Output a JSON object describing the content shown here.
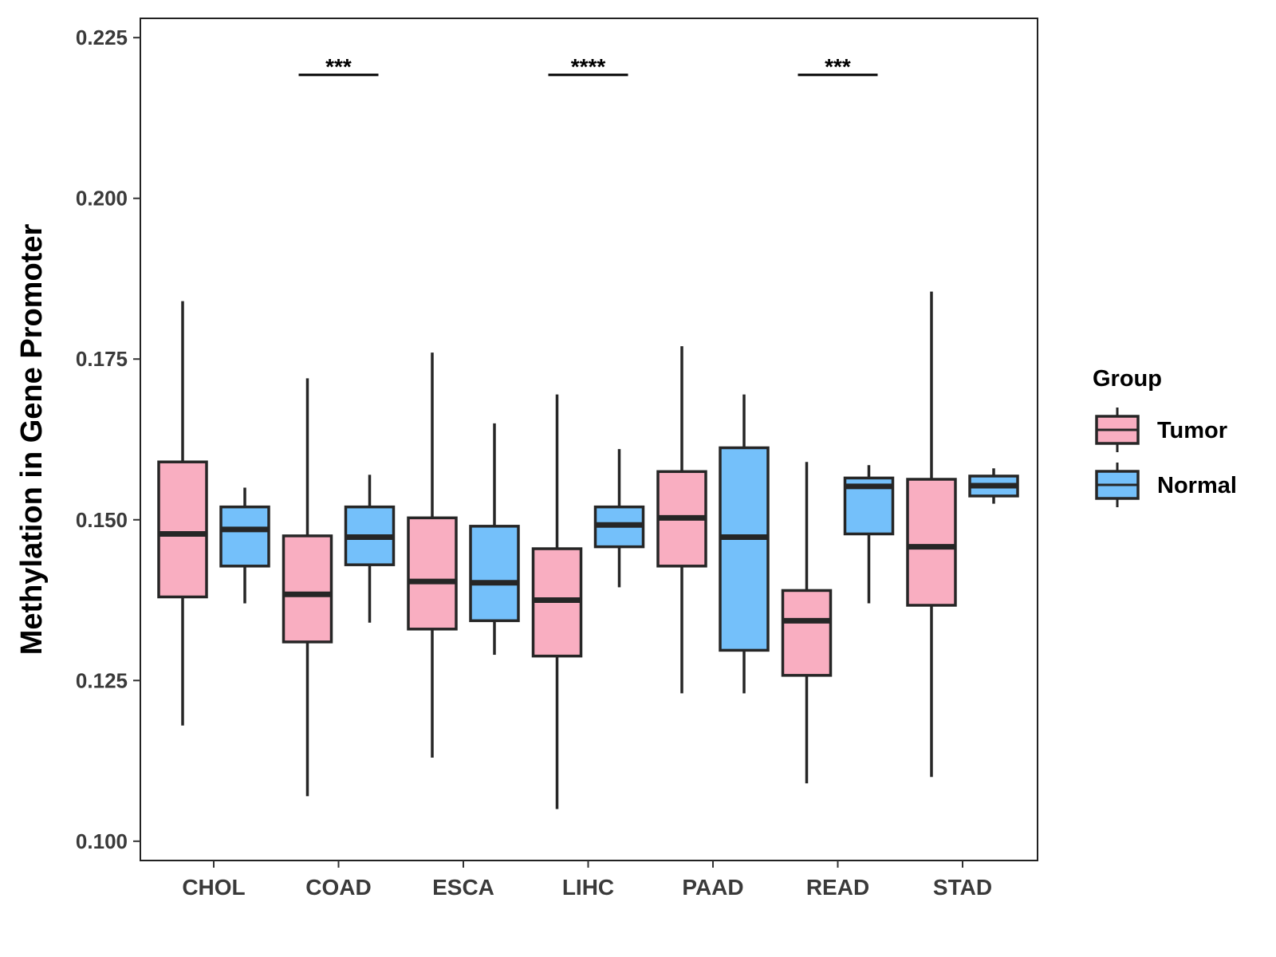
{
  "chart_data": {
    "type": "boxplot",
    "title": "",
    "xlabel": "",
    "ylabel": "Methylation in Gene Promoter",
    "ylim": [
      0.097,
      0.228
    ],
    "yticks": [
      0.1,
      0.125,
      0.15,
      0.175,
      0.2,
      0.225
    ],
    "ytick_labels": [
      "0.100",
      "0.125",
      "0.150",
      "0.175",
      "0.200",
      "0.225"
    ],
    "categories": [
      "CHOL",
      "COAD",
      "ESCA",
      "LIHC",
      "PAAD",
      "READ",
      "STAD"
    ],
    "grid": false,
    "legend": {
      "title": "Group",
      "position": "right",
      "entries": [
        {
          "name": "Tumor",
          "color": "#f9aec1"
        },
        {
          "name": "Normal",
          "color": "#74c0fa"
        }
      ]
    },
    "series": [
      {
        "name": "Tumor",
        "color": "#f9aec1",
        "boxes": [
          {
            "category": "CHOL",
            "whisker_low": 0.118,
            "q1": 0.138,
            "median": 0.1478,
            "q3": 0.159,
            "whisker_high": 0.184
          },
          {
            "category": "COAD",
            "whisker_low": 0.107,
            "q1": 0.131,
            "median": 0.1384,
            "q3": 0.1475,
            "whisker_high": 0.172
          },
          {
            "category": "ESCA",
            "whisker_low": 0.113,
            "q1": 0.133,
            "median": 0.1404,
            "q3": 0.1503,
            "whisker_high": 0.176
          },
          {
            "category": "LIHC",
            "whisker_low": 0.105,
            "q1": 0.1288,
            "median": 0.1375,
            "q3": 0.1455,
            "whisker_high": 0.1695
          },
          {
            "category": "PAAD",
            "whisker_low": 0.123,
            "q1": 0.1428,
            "median": 0.1503,
            "q3": 0.1575,
            "whisker_high": 0.177
          },
          {
            "category": "READ",
            "whisker_low": 0.109,
            "q1": 0.1258,
            "median": 0.1343,
            "q3": 0.139,
            "whisker_high": 0.159
          },
          {
            "category": "STAD",
            "whisker_low": 0.11,
            "q1": 0.1367,
            "median": 0.1458,
            "q3": 0.1563,
            "whisker_high": 0.1855
          }
        ]
      },
      {
        "name": "Normal",
        "color": "#74c0fa",
        "boxes": [
          {
            "category": "CHOL",
            "whisker_low": 0.137,
            "q1": 0.1428,
            "median": 0.1485,
            "q3": 0.152,
            "whisker_high": 0.155
          },
          {
            "category": "COAD",
            "whisker_low": 0.134,
            "q1": 0.143,
            "median": 0.1473,
            "q3": 0.152,
            "whisker_high": 0.157
          },
          {
            "category": "ESCA",
            "whisker_low": 0.129,
            "q1": 0.1343,
            "median": 0.1402,
            "q3": 0.149,
            "whisker_high": 0.165
          },
          {
            "category": "LIHC",
            "whisker_low": 0.1395,
            "q1": 0.1458,
            "median": 0.1492,
            "q3": 0.152,
            "whisker_high": 0.161
          },
          {
            "category": "PAAD",
            "whisker_low": 0.123,
            "q1": 0.1297,
            "median": 0.1473,
            "q3": 0.1612,
            "whisker_high": 0.1695
          },
          {
            "category": "READ",
            "whisker_low": 0.137,
            "q1": 0.1478,
            "median": 0.1552,
            "q3": 0.1565,
            "whisker_high": 0.1585
          },
          {
            "category": "STAD",
            "whisker_low": 0.1525,
            "q1": 0.1537,
            "median": 0.1553,
            "q3": 0.1568,
            "whisker_high": 0.158
          }
        ]
      }
    ],
    "annotations": [
      {
        "category": "COAD",
        "label": "***",
        "y": 0.2192
      },
      {
        "category": "LIHC",
        "label": "****",
        "y": 0.2192
      },
      {
        "category": "READ",
        "label": "***",
        "y": 0.2192
      }
    ]
  }
}
